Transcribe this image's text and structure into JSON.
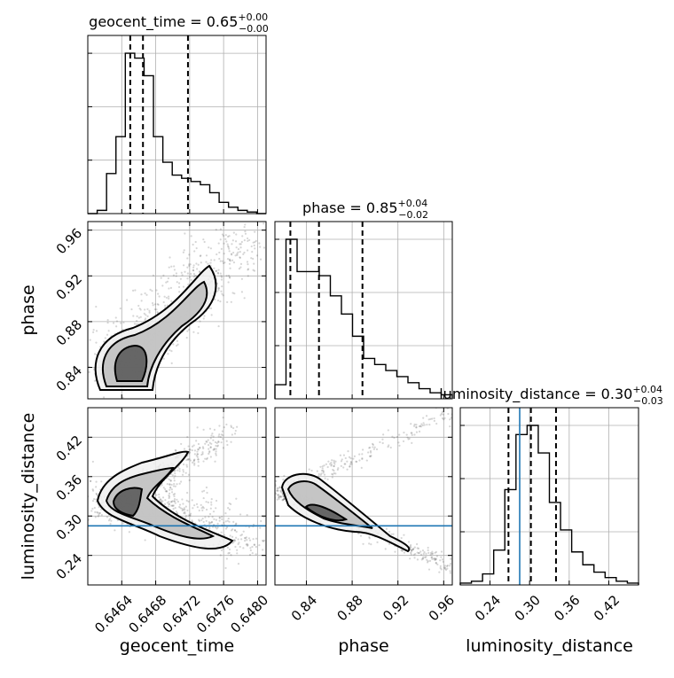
{
  "chart_data": {
    "type": "corner",
    "parameters": [
      "geocent_time",
      "phase",
      "luminosity_distance"
    ],
    "titles": [
      {
        "name": "geocent_time",
        "value": "0.65",
        "plus": "+0.00",
        "minus": "−0.00"
      },
      {
        "name": "phase",
        "value": "0.85",
        "plus": "+0.04",
        "minus": "−0.02"
      },
      {
        "name": "luminosity_distance",
        "value": "0.30",
        "plus": "+0.04",
        "minus": "−0.03"
      }
    ],
    "ranges": {
      "geocent_time": [
        0.646,
        0.6481
      ],
      "phase": [
        0.8125,
        0.9675
      ],
      "luminosity_distance": [
        0.195,
        0.465
      ]
    },
    "ticks": {
      "geocent_time": [
        "0.6464",
        "0.6468",
        "0.6472",
        "0.6476",
        "0.6480"
      ],
      "phase": [
        "0.84",
        "0.88",
        "0.92",
        "0.96"
      ],
      "luminosity_distance": [
        "0.24",
        "0.30",
        "0.36",
        "0.42"
      ]
    },
    "quantiles": {
      "geocent_time": [
        0.6465,
        0.64665,
        0.64718
      ],
      "phase": [
        0.826,
        0.851,
        0.889
      ],
      "luminosity_distance": [
        0.268,
        0.302,
        0.34
      ]
    },
    "truth": {
      "luminosity_distance": 0.285
    },
    "histograms": {
      "geocent_time": [
        0,
        2,
        25,
        48,
        100,
        97,
        86,
        48,
        32,
        24,
        22,
        20,
        18,
        13,
        7,
        4,
        2,
        1,
        0
      ],
      "phase": [
        7,
        79,
        63,
        63,
        61,
        51,
        42,
        31,
        20,
        17,
        14,
        11,
        8,
        5,
        3,
        2
      ],
      "luminosity_distance": [
        1,
        2,
        6,
        19,
        52,
        82,
        87,
        72,
        45,
        30,
        18,
        11,
        7,
        4,
        2,
        1
      ]
    },
    "axis_labels": {
      "x": [
        "geocent_time",
        "phase",
        "luminosity_distance"
      ],
      "y_phase": "phase",
      "y_luminosity_distance": "luminosity_distance"
    },
    "grid": true
  }
}
